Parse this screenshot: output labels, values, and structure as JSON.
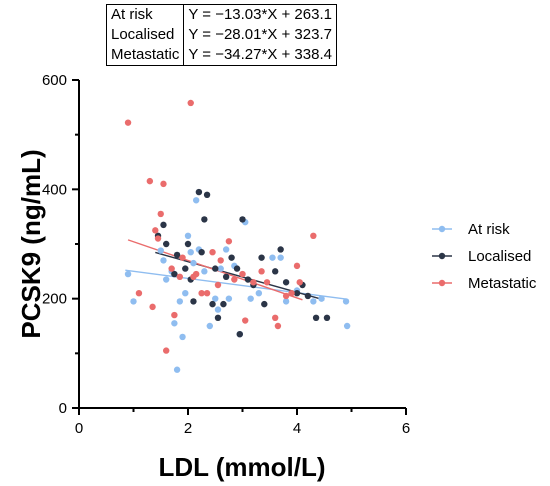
{
  "chart_data": {
    "type": "scatter",
    "xlabel": "LDL (mmol/L)",
    "ylabel": "PCSK9 (ng/mL)",
    "xlim": [
      0,
      6
    ],
    "ylim": [
      0,
      600
    ],
    "xticks": [
      "0",
      "2",
      "4",
      "6"
    ],
    "yticks": [
      "0",
      "200",
      "400",
      "600"
    ],
    "grid": false,
    "legend": "right",
    "equations": [
      {
        "group": "At risk",
        "formula": "Y = −13.03*X + 263.1"
      },
      {
        "group": "Localised",
        "formula": "Y = −28.01*X + 323.7"
      },
      {
        "group": "Metastatic",
        "formula": "Y = −34.27*X + 338.4"
      }
    ],
    "series": [
      {
        "name": "At risk",
        "color": "#8fbdf0",
        "fit": {
          "slope": -13.03,
          "intercept": 263.1,
          "x": [
            0.85,
            4.9
          ]
        },
        "points": [
          [
            0.9,
            245
          ],
          [
            1.0,
            195
          ],
          [
            1.5,
            288
          ],
          [
            1.55,
            270
          ],
          [
            1.6,
            235
          ],
          [
            1.7,
            250
          ],
          [
            1.75,
            155
          ],
          [
            1.8,
            70
          ],
          [
            1.85,
            195
          ],
          [
            1.9,
            130
          ],
          [
            1.95,
            210
          ],
          [
            2.0,
            315
          ],
          [
            2.05,
            285
          ],
          [
            2.1,
            265
          ],
          [
            2.15,
            380
          ],
          [
            2.2,
            290
          ],
          [
            2.3,
            250
          ],
          [
            2.4,
            150
          ],
          [
            2.5,
            200
          ],
          [
            2.55,
            180
          ],
          [
            2.6,
            255
          ],
          [
            2.7,
            290
          ],
          [
            2.75,
            200
          ],
          [
            2.85,
            260
          ],
          [
            2.95,
            135
          ],
          [
            3.05,
            340
          ],
          [
            3.15,
            200
          ],
          [
            3.3,
            210
          ],
          [
            3.55,
            275
          ],
          [
            3.7,
            275
          ],
          [
            3.8,
            195
          ],
          [
            4.0,
            215
          ],
          [
            4.3,
            195
          ],
          [
            4.45,
            200
          ],
          [
            4.9,
            195
          ],
          [
            4.92,
            150
          ]
        ]
      },
      {
        "name": "Localised",
        "color": "#2b3547",
        "fit": {
          "slope": -28.01,
          "intercept": 323.7,
          "x": [
            1.4,
            4.5
          ]
        },
        "points": [
          [
            1.45,
            315
          ],
          [
            1.55,
            335
          ],
          [
            1.6,
            300
          ],
          [
            1.75,
            245
          ],
          [
            1.8,
            280
          ],
          [
            1.95,
            255
          ],
          [
            2.0,
            300
          ],
          [
            2.05,
            235
          ],
          [
            2.1,
            195
          ],
          [
            2.2,
            395
          ],
          [
            2.25,
            285
          ],
          [
            2.3,
            345
          ],
          [
            2.35,
            390
          ],
          [
            2.45,
            190
          ],
          [
            2.5,
            255
          ],
          [
            2.55,
            165
          ],
          [
            2.65,
            190
          ],
          [
            2.7,
            240
          ],
          [
            2.8,
            275
          ],
          [
            2.9,
            255
          ],
          [
            2.95,
            135
          ],
          [
            3.0,
            345
          ],
          [
            3.1,
            235
          ],
          [
            3.2,
            225
          ],
          [
            3.35,
            275
          ],
          [
            3.4,
            190
          ],
          [
            3.6,
            250
          ],
          [
            3.7,
            290
          ],
          [
            3.8,
            230
          ],
          [
            4.0,
            210
          ],
          [
            4.1,
            225
          ],
          [
            4.2,
            205
          ],
          [
            4.35,
            165
          ],
          [
            4.55,
            165
          ]
        ]
      },
      {
        "name": "Metastatic",
        "color": "#ea6c6c",
        "fit": {
          "slope": -34.27,
          "intercept": 338.4,
          "x": [
            0.9,
            4.1
          ]
        },
        "points": [
          [
            0.9,
            522
          ],
          [
            1.1,
            210
          ],
          [
            1.3,
            415
          ],
          [
            1.35,
            185
          ],
          [
            1.4,
            325
          ],
          [
            1.45,
            310
          ],
          [
            1.5,
            355
          ],
          [
            1.55,
            410
          ],
          [
            1.6,
            105
          ],
          [
            1.7,
            255
          ],
          [
            1.75,
            170
          ],
          [
            1.85,
            240
          ],
          [
            1.9,
            275
          ],
          [
            2.05,
            558
          ],
          [
            2.1,
            240
          ],
          [
            2.15,
            245
          ],
          [
            2.25,
            210
          ],
          [
            2.35,
            210
          ],
          [
            2.45,
            285
          ],
          [
            2.55,
            225
          ],
          [
            2.6,
            270
          ],
          [
            2.75,
            305
          ],
          [
            2.85,
            235
          ],
          [
            3.0,
            245
          ],
          [
            3.05,
            160
          ],
          [
            3.2,
            230
          ],
          [
            3.35,
            250
          ],
          [
            3.45,
            230
          ],
          [
            3.6,
            165
          ],
          [
            3.65,
            150
          ],
          [
            3.8,
            205
          ],
          [
            3.9,
            210
          ],
          [
            4.0,
            260
          ],
          [
            4.05,
            230
          ],
          [
            4.3,
            315
          ]
        ]
      }
    ]
  }
}
